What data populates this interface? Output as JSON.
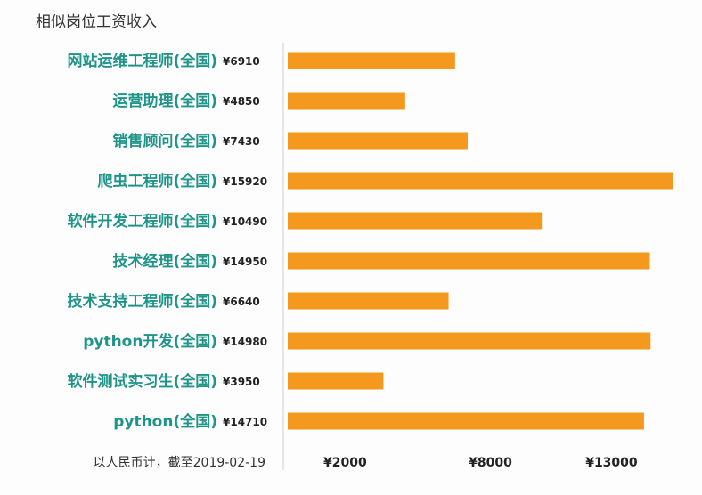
{
  "chart_data": {
    "type": "bar",
    "orientation": "horizontal",
    "title": "相似岗位工资收入",
    "note": "以人民币计，截至2019-02-19",
    "categories": [
      "网站运维工程师(全国)",
      "运营助理(全国)",
      "销售顾问(全国)",
      "爬虫工程师(全国)",
      "软件开发工程师(全国)",
      "技术经理(全国)",
      "技术支持工程师(全国)",
      "python开发(全国)",
      "软件测试实习生(全国)",
      "python(全国)"
    ],
    "values": [
      6910,
      4850,
      7430,
      15920,
      10490,
      14950,
      6640,
      14980,
      3950,
      14710
    ],
    "value_labels": [
      "¥6910",
      "¥4850",
      "¥7430",
      "¥15920",
      "¥10490",
      "¥14950",
      "¥6640",
      "¥14980",
      "¥3950",
      "¥14710"
    ],
    "ticks": [
      2000,
      8000,
      13000
    ],
    "tick_labels": [
      "¥2000",
      "¥8000",
      "¥13000"
    ],
    "xlim": [
      0,
      16000
    ],
    "grid": false,
    "colors": {
      "bar": "#f5981e",
      "label": "#1f9488"
    }
  }
}
